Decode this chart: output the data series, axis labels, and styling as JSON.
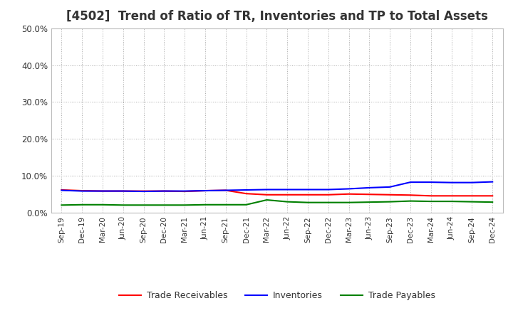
{
  "title": "[4502]  Trend of Ratio of TR, Inventories and TP to Total Assets",
  "x_labels": [
    "Sep-19",
    "Dec-19",
    "Mar-20",
    "Jun-20",
    "Sep-20",
    "Dec-20",
    "Mar-21",
    "Jun-21",
    "Sep-21",
    "Dec-21",
    "Mar-22",
    "Jun-22",
    "Sep-22",
    "Dec-22",
    "Mar-23",
    "Jun-23",
    "Sep-23",
    "Dec-23",
    "Mar-24",
    "Jun-24",
    "Sep-24",
    "Dec-24"
  ],
  "trade_receivables": [
    0.062,
    0.06,
    0.059,
    0.059,
    0.059,
    0.059,
    0.058,
    0.06,
    0.061,
    0.052,
    0.049,
    0.049,
    0.049,
    0.049,
    0.051,
    0.05,
    0.049,
    0.048,
    0.046,
    0.046,
    0.046,
    0.046
  ],
  "inventories": [
    0.061,
    0.059,
    0.059,
    0.059,
    0.058,
    0.059,
    0.059,
    0.06,
    0.061,
    0.062,
    0.063,
    0.063,
    0.063,
    0.063,
    0.065,
    0.068,
    0.07,
    0.083,
    0.083,
    0.082,
    0.082,
    0.084
  ],
  "trade_payables": [
    0.021,
    0.022,
    0.022,
    0.021,
    0.021,
    0.021,
    0.021,
    0.022,
    0.022,
    0.022,
    0.035,
    0.03,
    0.028,
    0.028,
    0.028,
    0.029,
    0.03,
    0.032,
    0.031,
    0.031,
    0.03,
    0.029
  ],
  "line_color_tr": "#ff0000",
  "line_color_inv": "#0000ff",
  "line_color_tp": "#008000",
  "ylim": [
    0.0,
    0.5
  ],
  "yticks": [
    0.0,
    0.1,
    0.2,
    0.3,
    0.4,
    0.5
  ],
  "background_color": "#ffffff",
  "grid_color": "#aaaaaa",
  "title_fontsize": 12,
  "title_color": "#333333",
  "legend_labels": [
    "Trade Receivables",
    "Inventories",
    "Trade Payables"
  ]
}
